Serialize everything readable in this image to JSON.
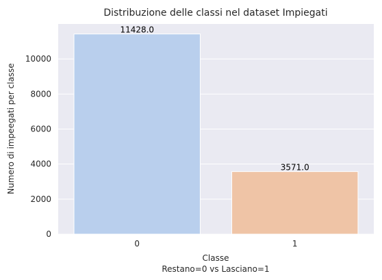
{
  "chart_data": {
    "type": "bar",
    "title": "Distribuzione delle classi nel dataset Impiegati",
    "xlabel": "Classe",
    "xlabel_line2": "Restano=0  vs  Lasciano=1",
    "ylabel": "Numero di impeegati per classe",
    "categories": [
      "0",
      "1"
    ],
    "values": [
      11428,
      3571
    ],
    "data_labels": [
      "11428.0",
      "3571.0"
    ],
    "ylim": [
      0,
      12000
    ],
    "yticks": [
      0,
      2000,
      4000,
      6000,
      8000,
      10000
    ],
    "ytick_labels": [
      "0",
      "2000",
      "4000",
      "6000",
      "8000",
      "10000"
    ],
    "grid": true,
    "colors": [
      "#b9cfed",
      "#efc4a6"
    ],
    "background": "#eaeaf2"
  }
}
